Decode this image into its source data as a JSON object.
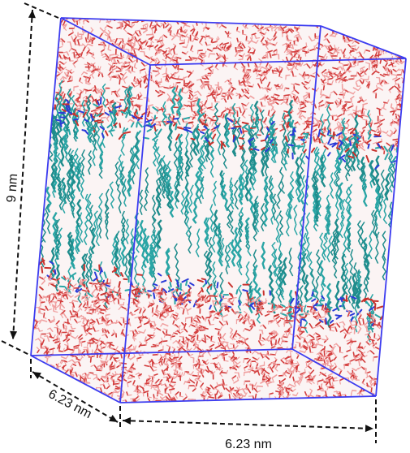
{
  "figure": {
    "dimensions": {
      "height_label": "9 nm",
      "depth_label": "6.23 nm",
      "width_label": "6.23 nm"
    },
    "colors": {
      "box_edges": "#3c3cf0",
      "water": "#d23c3c",
      "water_light": "#f0a0a0",
      "lipid_tails": "#2aa5a5",
      "lipid_tails_dark": "#1f8c8c",
      "headgroup_nitrogen": "#2a3ad8",
      "headgroup_oxygen": "#c8322d",
      "dimension_lines": "#111111"
    },
    "layers": [
      "water",
      "lipid-headgroups",
      "lipid-tails",
      "lipid-headgroups",
      "water"
    ]
  }
}
